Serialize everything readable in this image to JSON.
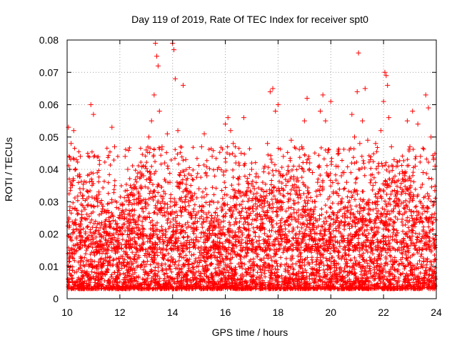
{
  "chart_data": {
    "type": "scatter",
    "title": "Day 119 of 2019, Rate Of TEC Index for receiver spt0",
    "xlabel": "GPS time / hours",
    "ylabel": "ROTI / TECUs",
    "xlim": [
      10,
      24
    ],
    "ylim": [
      0,
      0.08
    ],
    "x_ticks": [
      10,
      12,
      14,
      16,
      18,
      20,
      22,
      24
    ],
    "x_tick_labels": [
      "10",
      "12",
      "14",
      "16",
      "18",
      "20",
      "22",
      "24"
    ],
    "y_ticks": [
      0,
      0.01,
      0.02,
      0.03,
      0.04,
      0.05,
      0.06,
      0.07,
      0.08
    ],
    "y_tick_labels": [
      "0",
      "0.01",
      "0.02",
      "0.03",
      "0.04",
      "0.05",
      "0.06",
      "0.07",
      "0.08"
    ],
    "grid": true,
    "marker": "plus",
    "series_color": "#ff0000",
    "series": [
      {
        "name": "spt0",
        "x": [
          10.05,
          10.1,
          10.15,
          10.2,
          10.25,
          10.3,
          10.35,
          10.4,
          10.45,
          10.5,
          10.55,
          10.6,
          10.7,
          10.8,
          10.9,
          11.0,
          11.1,
          11.2,
          11.3,
          11.4,
          11.5,
          11.6,
          11.7,
          11.8,
          11.9,
          12.0,
          12.1,
          12.2,
          12.3,
          12.4,
          12.5,
          12.6,
          12.7,
          12.8,
          12.9,
          13.0,
          13.1,
          13.2,
          13.3,
          13.35,
          13.4,
          13.45,
          13.5,
          13.6,
          13.7,
          13.8,
          13.9,
          14.0,
          14.05,
          14.1,
          14.2,
          14.3,
          14.4,
          14.5,
          14.6,
          14.7,
          14.8,
          14.9,
          15.0,
          15.1,
          15.2,
          15.3,
          15.4,
          15.5,
          15.6,
          15.7,
          15.8,
          15.9,
          16.0,
          16.1,
          16.2,
          16.3,
          16.4,
          16.5,
          16.6,
          16.7,
          16.8,
          16.9,
          17.0,
          17.1,
          17.2,
          17.3,
          17.4,
          17.5,
          17.6,
          17.7,
          17.8,
          17.9,
          18.0,
          18.1,
          18.2,
          18.3,
          18.4,
          18.5,
          18.6,
          18.7,
          18.8,
          18.9,
          19.0,
          19.1,
          19.2,
          19.3,
          19.4,
          19.5,
          19.6,
          19.7,
          19.8,
          19.9,
          20.0,
          20.1,
          20.2,
          20.3,
          20.4,
          20.5,
          20.6,
          20.7,
          20.8,
          20.9,
          21.0,
          21.05,
          21.1,
          21.2,
          21.3,
          21.4,
          21.5,
          21.6,
          21.7,
          21.8,
          21.9,
          22.0,
          22.05,
          22.1,
          22.15,
          22.2,
          22.3,
          22.4,
          22.5,
          22.6,
          22.7,
          22.8,
          22.9,
          23.0,
          23.1,
          23.2,
          23.3,
          23.4,
          23.5,
          23.6,
          23.7,
          23.8,
          23.9,
          23.95
        ],
        "y": [
          0.053,
          0.04,
          0.048,
          0.035,
          0.052,
          0.028,
          0.043,
          0.038,
          0.021,
          0.044,
          0.026,
          0.031,
          0.018,
          0.029,
          0.06,
          0.057,
          0.022,
          0.033,
          0.019,
          0.027,
          0.015,
          0.024,
          0.053,
          0.047,
          0.021,
          0.025,
          0.029,
          0.044,
          0.04,
          0.017,
          0.034,
          0.023,
          0.031,
          0.02,
          0.038,
          0.046,
          0.05,
          0.055,
          0.063,
          0.079,
          0.075,
          0.072,
          0.058,
          0.047,
          0.042,
          0.051,
          0.036,
          0.079,
          0.077,
          0.068,
          0.052,
          0.039,
          0.066,
          0.043,
          0.03,
          0.022,
          0.027,
          0.019,
          0.034,
          0.047,
          0.051,
          0.038,
          0.029,
          0.044,
          0.025,
          0.04,
          0.021,
          0.031,
          0.054,
          0.056,
          0.052,
          0.048,
          0.042,
          0.037,
          0.045,
          0.056,
          0.032,
          0.028,
          0.04,
          0.034,
          0.022,
          0.026,
          0.03,
          0.041,
          0.048,
          0.064,
          0.065,
          0.058,
          0.06,
          0.038,
          0.044,
          0.035,
          0.028,
          0.049,
          0.037,
          0.033,
          0.041,
          0.047,
          0.055,
          0.062,
          0.042,
          0.039,
          0.03,
          0.036,
          0.058,
          0.063,
          0.055,
          0.046,
          0.061,
          0.033,
          0.041,
          0.045,
          0.038,
          0.039,
          0.036,
          0.046,
          0.057,
          0.05,
          0.064,
          0.076,
          0.048,
          0.055,
          0.065,
          0.049,
          0.043,
          0.035,
          0.048,
          0.041,
          0.052,
          0.061,
          0.07,
          0.069,
          0.066,
          0.056,
          0.047,
          0.043,
          0.031,
          0.027,
          0.033,
          0.038,
          0.055,
          0.047,
          0.058,
          0.041,
          0.054,
          0.044,
          0.039,
          0.063,
          0.059,
          0.05,
          0.043,
          0.041
        ]
      }
    ],
    "background_band": "dense scatter of points between 0.003 and 0.02 across the full 10-24 hour range"
  }
}
